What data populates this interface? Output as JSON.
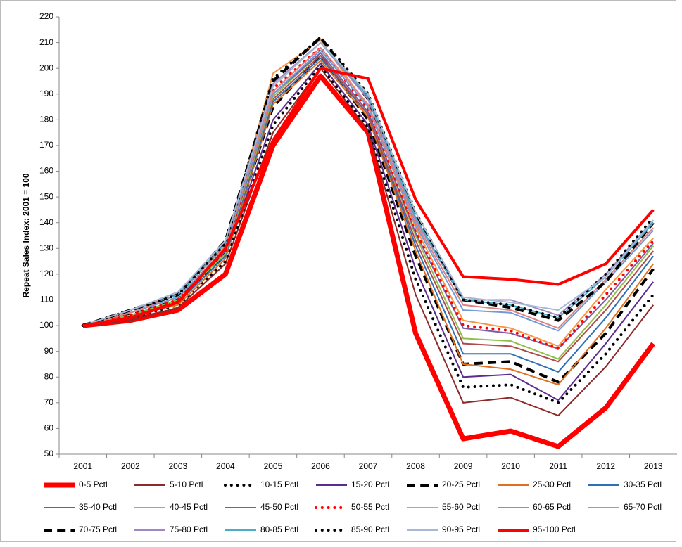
{
  "chart_data": {
    "type": "line",
    "y_label": "Repeat Sales Index: 2001 = 100",
    "categories": [
      "2001",
      "2002",
      "2003",
      "2004",
      "2005",
      "2006",
      "2007",
      "2008",
      "2009",
      "2010",
      "2011",
      "2012",
      "2013"
    ],
    "ylim": [
      50,
      220
    ],
    "yticks": [
      50,
      60,
      70,
      80,
      90,
      100,
      110,
      120,
      130,
      140,
      150,
      160,
      170,
      180,
      190,
      200,
      210,
      220
    ],
    "legend": "bottom",
    "series": [
      {
        "name": "0-5 Pctl",
        "color": "#ff0000",
        "width": 7,
        "dash": "solid",
        "values": [
          100,
          102,
          106,
          120,
          170,
          197,
          175,
          97,
          56,
          59,
          53,
          68,
          93
        ]
      },
      {
        "name": "5-10 Pctl",
        "color": "#8b2a2a",
        "width": 2,
        "dash": "solid",
        "values": [
          100,
          102,
          107,
          124,
          175,
          200,
          176,
          112,
          70,
          72,
          65,
          84,
          108
        ]
      },
      {
        "name": "10-15 Pctl",
        "color": "#000000",
        "width": 4,
        "dash": "dot",
        "values": [
          100,
          103,
          108,
          125,
          178,
          201,
          177,
          118,
          76,
          77,
          70,
          89,
          112
        ]
      },
      {
        "name": "15-20 Pctl",
        "color": "#5b2c8e",
        "width": 2,
        "dash": "solid",
        "values": [
          100,
          103,
          109,
          127,
          180,
          202,
          178,
          122,
          80,
          81,
          71,
          93,
          117
        ]
      },
      {
        "name": "20-25 Pctl",
        "color": "#000000",
        "width": 4,
        "dash": "dash",
        "values": [
          100,
          104,
          110,
          128,
          185,
          205,
          180,
          127,
          85,
          86,
          78,
          97,
          122
        ]
      },
      {
        "name": "25-30 Pctl",
        "color": "#e07020",
        "width": 2,
        "dash": "solid",
        "values": [
          100,
          104,
          108,
          126,
          186,
          203,
          181,
          129,
          85,
          83,
          77,
          99,
          124
        ]
      },
      {
        "name": "30-35 Pctl",
        "color": "#2e6fb7",
        "width": 2,
        "dash": "solid",
        "values": [
          100,
          104,
          109,
          127,
          187,
          204,
          182,
          131,
          89,
          89,
          82,
          103,
          127
        ]
      },
      {
        "name": "35-40 Pctl",
        "color": "#b04a4a",
        "width": 2,
        "dash": "solid",
        "values": [
          100,
          104,
          110,
          128,
          188,
          205,
          182,
          133,
          93,
          92,
          86,
          106,
          129
        ]
      },
      {
        "name": "40-45 Pctl",
        "color": "#8fbf4a",
        "width": 2,
        "dash": "solid",
        "values": [
          100,
          104,
          110,
          128,
          189,
          206,
          183,
          135,
          95,
          94,
          87,
          108,
          131
        ]
      },
      {
        "name": "45-50 Pctl",
        "color": "#7b5ba8",
        "width": 2,
        "dash": "solid",
        "values": [
          100,
          105,
          111,
          129,
          190,
          206,
          183,
          136,
          99,
          97,
          91,
          110,
          132
        ]
      },
      {
        "name": "50-55 Pctl",
        "color": "#ff0000",
        "width": 4,
        "dash": "dot",
        "values": [
          100,
          104,
          110,
          129,
          192,
          208,
          184,
          137,
          100,
          98,
          91,
          112,
          133
        ]
      },
      {
        "name": "55-60 Pctl",
        "color": "#f79646",
        "width": 2,
        "dash": "solid",
        "values": [
          100,
          105,
          111,
          130,
          198,
          211,
          185,
          138,
          102,
          99,
          92,
          114,
          134
        ]
      },
      {
        "name": "60-65 Pctl",
        "color": "#6f9bd8",
        "width": 2,
        "dash": "solid",
        "values": [
          100,
          105,
          111,
          130,
          190,
          207,
          185,
          139,
          106,
          105,
          98,
          117,
          137
        ]
      },
      {
        "name": "65-70 Pctl",
        "color": "#e08080",
        "width": 2,
        "dash": "solid",
        "values": [
          100,
          105,
          112,
          131,
          191,
          208,
          186,
          140,
          108,
          106,
          99,
          118,
          138
        ]
      },
      {
        "name": "70-75 Pctl",
        "color": "#000000",
        "width": 4,
        "dash": "dash",
        "values": [
          100,
          106,
          112,
          133,
          195,
          212,
          188,
          143,
          110,
          107,
          102,
          117,
          140
        ]
      },
      {
        "name": "75-80 Pctl",
        "color": "#9f88c0",
        "width": 2,
        "dash": "solid",
        "values": [
          100,
          106,
          113,
          133,
          194,
          210,
          188,
          141,
          110,
          110,
          104,
          120,
          141
        ]
      },
      {
        "name": "80-85 Pctl",
        "color": "#4bacc6",
        "width": 2,
        "dash": "solid",
        "values": [
          100,
          106,
          112,
          132,
          193,
          210,
          189,
          142,
          110,
          108,
          103,
          119,
          140
        ]
      },
      {
        "name": "85-90 Pctl",
        "color": "#000000",
        "width": 4,
        "dash": "dot",
        "values": [
          100,
          106,
          112,
          132,
          196,
          212,
          190,
          144,
          110,
          108,
          103,
          120,
          142
        ]
      },
      {
        "name": "90-95 Pctl",
        "color": "#a6b8d8",
        "width": 2,
        "dash": "solid",
        "values": [
          100,
          106,
          113,
          133,
          193,
          210,
          190,
          144,
          111,
          109,
          106,
          119,
          141
        ]
      },
      {
        "name": "95-100 Pctl",
        "color": "#ff0000",
        "width": 4,
        "dash": "solid",
        "values": [
          100,
          103,
          109,
          130,
          172,
          200,
          196,
          149,
          119,
          118,
          116,
          124,
          145
        ]
      }
    ]
  }
}
